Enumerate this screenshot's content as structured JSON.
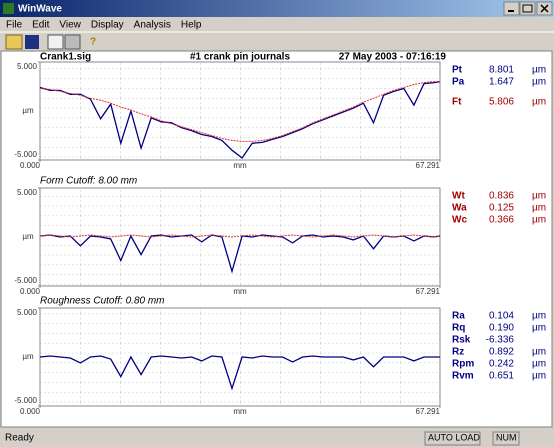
{
  "window": {
    "title": "WinWave",
    "menu": [
      "File",
      "Edit",
      "View",
      "Display",
      "Analysis",
      "Help"
    ]
  },
  "header": {
    "file": "Crank1.sig",
    "title": "#1 crank pin journals",
    "date": "27 May 2003 - 07:16:19"
  },
  "plots": [
    {
      "ylim": [
        -5,
        5
      ],
      "yticks": [
        {
          "value": 5,
          "label": "5.000"
        },
        {
          "value": -5,
          "label": "-5.000"
        }
      ],
      "ylabel": "µm",
      "xlim": [
        0,
        67.291
      ],
      "xticks": [
        {
          "value": 0,
          "label": "0.000"
        },
        67.291
      ],
      "xlabel": "mm",
      "x": [
        0,
        1.7,
        3.4,
        5.1,
        6.8,
        8.5,
        10.2,
        11.9,
        13.6,
        15.3,
        17,
        18.7,
        20.4,
        22.1,
        23.8,
        25.5,
        27.2,
        28.9,
        30.6,
        32.3,
        34,
        35.7,
        37.4,
        39.1,
        40.8,
        42.5,
        44.2,
        45.9,
        47.6,
        49.3,
        51,
        52.7,
        54.4,
        56.1,
        57.8,
        59.5,
        61.2,
        62.9,
        64.6,
        66.3,
        67.291
      ],
      "series": [
        {
          "color": "#000080",
          "values": [
            2.4,
            2.1,
            2.1,
            1.7,
            1.7,
            1.2,
            -0.8,
            0.7,
            -3.3,
            0.0,
            -3.8,
            -0.7,
            -1.1,
            -1.2,
            -1.7,
            -2.0,
            -2.4,
            -2.6,
            -3.0,
            -4.0,
            -4.8,
            -3.3,
            -3.2,
            -2.9,
            -2.6,
            -2.2,
            -1.8,
            -1.3,
            -0.9,
            -0.5,
            -0.1,
            0.3,
            0.8,
            -1.2,
            1.6,
            2.0,
            2.3,
            0.6,
            2.8,
            2.9,
            3.0
          ]
        },
        {
          "color": "#e03030",
          "values": [
            2.3,
            2.2,
            2.0,
            1.8,
            1.6,
            1.3,
            1.1,
            0.8,
            0.4,
            0.1,
            -0.3,
            -0.6,
            -1.0,
            -1.3,
            -1.6,
            -1.9,
            -2.2,
            -2.5,
            -2.8,
            -3.0,
            -3.1,
            -3.1,
            -3.0,
            -2.8,
            -2.5,
            -2.1,
            -1.7,
            -1.2,
            -0.8,
            -0.4,
            0.0,
            0.4,
            0.9,
            1.3,
            1.7,
            2.1,
            2.4,
            2.7,
            2.9,
            3.0,
            3.0
          ]
        }
      ],
      "params": [
        {
          "name": "Pt",
          "value": "8.801",
          "unit": "µm",
          "color": "#000080"
        },
        {
          "name": "Pa",
          "value": "1.647",
          "unit": "µm",
          "color": "#000080"
        },
        {
          "name": "Ft",
          "value": "5.806",
          "unit": "µm",
          "color": "#a00000"
        }
      ]
    },
    {
      "label": "Form Cutoff: 8.00 mm",
      "ylim": [
        -5,
        5
      ],
      "yticks": [
        {
          "value": 5,
          "label": "5.000"
        },
        {
          "value": -5,
          "label": "-5.000"
        }
      ],
      "ylabel": "µm",
      "xlim": [
        0,
        67.291
      ],
      "xticks": [
        {
          "value": 0,
          "label": "0.000"
        },
        67.291
      ],
      "xlabel": "mm",
      "x": [
        0,
        1.7,
        3.4,
        5.1,
        6.8,
        8.5,
        10.2,
        11.9,
        13.6,
        15.3,
        17,
        18.7,
        20.4,
        22.1,
        23.8,
        25.5,
        27.2,
        28.9,
        30.6,
        32.3,
        34,
        35.7,
        37.4,
        39.1,
        40.8,
        42.5,
        44.2,
        45.9,
        47.6,
        49.3,
        51,
        52.7,
        54.4,
        56.1,
        57.8,
        59.5,
        61.2,
        62.9,
        64.6,
        66.3,
        67.291
      ],
      "series": [
        {
          "color": "#000080",
          "values": [
            0.1,
            0.2,
            0.0,
            0.1,
            -0.9,
            0.1,
            0.0,
            -0.2,
            -2.4,
            0.1,
            -1.8,
            0.1,
            0.2,
            0.0,
            0.1,
            0.2,
            -0.5,
            0.2,
            0.0,
            -3.5,
            0.1,
            0.0,
            0.2,
            0.1,
            0.0,
            -0.6,
            0.1,
            0.2,
            0.0,
            0.1,
            0.0,
            -0.3,
            0.1,
            -1.2,
            0.1,
            0.0,
            0.1,
            -0.4,
            0.1,
            0.0,
            0.1
          ]
        },
        {
          "color": "#e03030",
          "values": [
            0.1,
            0.2,
            0.1,
            0.0,
            0.1,
            0.2,
            0.1,
            0.0,
            0.1,
            0.2,
            0.1,
            0.0,
            0.1,
            0.2,
            0.1,
            0.0,
            0.1,
            0.2,
            0.1,
            0.0,
            0.1,
            0.2,
            0.1,
            0.0,
            0.1,
            0.2,
            0.1,
            0.0,
            0.1,
            0.2,
            0.1,
            0.0,
            0.1,
            0.2,
            0.1,
            0.0,
            0.1,
            0.2,
            0.1,
            0.0,
            0.1
          ]
        }
      ],
      "params": [
        {
          "name": "Wt",
          "value": "0.836",
          "unit": "µm",
          "color": "#a00000"
        },
        {
          "name": "Wa",
          "value": "0.125",
          "unit": "µm",
          "color": "#a00000"
        },
        {
          "name": "Wc",
          "value": "0.366",
          "unit": "µm",
          "color": "#a00000"
        }
      ]
    },
    {
      "label": "Roughness Cutoff: 0.80 mm",
      "ylim": [
        -5,
        5
      ],
      "yticks": [
        {
          "value": 5,
          "label": "5.000"
        },
        {
          "value": -5,
          "label": "-5.000"
        }
      ],
      "ylabel": "µm",
      "xlim": [
        0,
        67.291
      ],
      "xticks": [
        {
          "value": 0,
          "label": "0.000"
        },
        67.291
      ],
      "xlabel": "mm",
      "x": [
        0,
        1.7,
        3.4,
        5.1,
        6.8,
        8.5,
        10.2,
        11.9,
        13.6,
        15.3,
        17,
        18.7,
        20.4,
        22.1,
        23.8,
        25.5,
        27.2,
        28.9,
        30.6,
        32.3,
        34,
        35.7,
        37.4,
        39.1,
        40.8,
        42.5,
        44.2,
        45.9,
        47.6,
        49.3,
        51,
        52.7,
        54.4,
        56.1,
        57.8,
        59.5,
        61.2,
        62.9,
        64.6,
        66.3,
        67.291
      ],
      "series": [
        {
          "color": "#000080",
          "values": [
            0.0,
            0.1,
            0.0,
            -0.1,
            -0.6,
            0.0,
            0.1,
            -0.2,
            -2.0,
            0.0,
            -1.8,
            0.0,
            0.1,
            0.0,
            -0.1,
            0.0,
            -0.4,
            0.1,
            0.0,
            -3.2,
            0.0,
            -0.1,
            0.1,
            0.0,
            0.0,
            -0.5,
            0.0,
            0.1,
            0.0,
            0.0,
            0.0,
            -0.3,
            0.0,
            -1.0,
            0.0,
            0.0,
            0.0,
            -0.4,
            0.0,
            0.0,
            0.0
          ]
        }
      ],
      "params": [
        {
          "name": "Ra",
          "value": "0.104",
          "unit": "µm",
          "color": "#000080"
        },
        {
          "name": "Rq",
          "value": "0.190",
          "unit": "µm",
          "color": "#000080"
        },
        {
          "name": "Rsk",
          "value": "-6.336",
          "unit": "",
          "color": "#000080"
        },
        {
          "name": "Rz",
          "value": "0.892",
          "unit": "µm",
          "color": "#000080"
        },
        {
          "name": "Rpm",
          "value": "0.242",
          "unit": "µm",
          "color": "#000080"
        },
        {
          "name": "Rvm",
          "value": "0.651",
          "unit": "µm",
          "color": "#000080"
        }
      ]
    }
  ],
  "status": {
    "text": "Ready",
    "panels": [
      "AUTO LOAD",
      "NUM"
    ]
  }
}
